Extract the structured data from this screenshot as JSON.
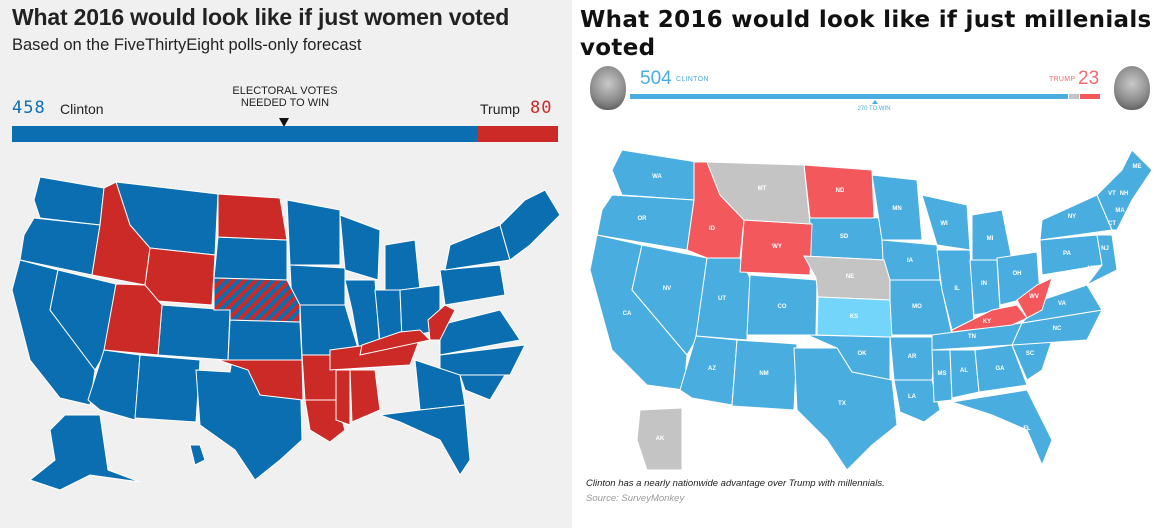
{
  "left_panel": {
    "title": "What 2016 would look like if just women voted",
    "subtitle": "Based on the FiveThirtyEight polls-only forecast",
    "needed_label_line1": "ELECTORAL VOTES",
    "needed_label_line2": "NEEDED TO WIN",
    "clinton": {
      "votes": "458",
      "name": "Clinton"
    },
    "trump": {
      "votes": "80",
      "name": "Trump"
    },
    "vote_share": {
      "clinton": 458,
      "trump": 80,
      "total": 538
    },
    "colors": {
      "clinton": "#0b6eb0",
      "trump": "#cc2a26",
      "background": "#f0f0f0"
    },
    "state_results": {
      "trump": [
        "ID",
        "UT",
        "WY",
        "ND",
        "OK",
        "AR",
        "LA",
        "MS",
        "AL",
        "TN",
        "KY",
        "WV"
      ],
      "split": [
        "NE"
      ],
      "clinton": "all other states"
    }
  },
  "right_panel": {
    "title": "What 2016 would look like if just millenials voted",
    "clinton": {
      "votes": "504",
      "name": "CLINTON",
      "avatar": "clinton-portrait"
    },
    "trump": {
      "votes": "23",
      "name": "TRUMP",
      "avatar": "trump-portrait"
    },
    "win_label": "270 TO WIN",
    "vote_share": {
      "clinton": 504,
      "tossup": 11,
      "trump": 23,
      "total": 538
    },
    "colors": {
      "clinton": "#4aaddf",
      "trump": "#f3585d",
      "tossup": "#c4c4c4",
      "lean_clinton": "#74d5fb"
    },
    "caption": "Clinton has a nearly nationwide advantage over Trump with millennials.",
    "source": "Source: SurveyMonkey",
    "state_results": {
      "trump": [
        "ID",
        "WY",
        "ND",
        "KY",
        "WV"
      ],
      "tossup": [
        "MT",
        "NE",
        "AK"
      ],
      "lean_clinton": [
        "KS"
      ],
      "clinton": "all other states"
    },
    "state_labels": [
      "WA",
      "OR",
      "CA",
      "NV",
      "ID",
      "MT",
      "WY",
      "UT",
      "CO",
      "AZ",
      "NM",
      "ND",
      "SD",
      "NE",
      "KS",
      "OK",
      "TX",
      "MN",
      "IA",
      "MO",
      "AR",
      "LA",
      "WI",
      "IL",
      "MI",
      "IN",
      "OH",
      "KY",
      "TN",
      "MS",
      "AL",
      "GA",
      "FL",
      "SC",
      "NC",
      "VA",
      "WV",
      "PA",
      "NY",
      "VT",
      "NH",
      "ME",
      "MA",
      "CT",
      "NJ",
      "MD",
      "AK"
    ]
  }
}
